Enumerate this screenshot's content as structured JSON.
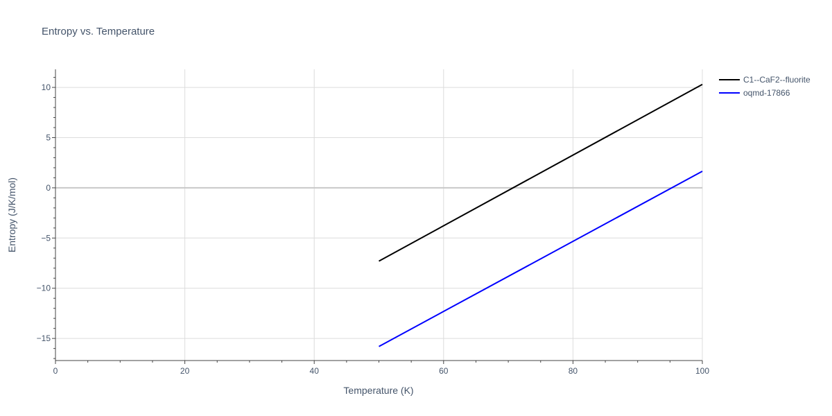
{
  "chart_data": {
    "type": "line",
    "title": "Entropy vs. Temperature",
    "xlabel": "Temperature (K)",
    "ylabel": "Entropy (J/K/mol)",
    "xlim": [
      0,
      100
    ],
    "ylim": [
      -17.2,
      11.8
    ],
    "x_ticks": [
      0,
      20,
      40,
      60,
      80,
      100
    ],
    "y_ticks": [
      10,
      5,
      0,
      -5,
      -10,
      -15
    ],
    "y_tick_labels": [
      "10",
      "5",
      "0",
      "−5",
      "−10",
      "−15"
    ],
    "grid": true,
    "legend_position": "top-right",
    "series": [
      {
        "name": "C1--CaF2--fluorite",
        "color": "#000000",
        "x": [
          50,
          100
        ],
        "y": [
          -7.3,
          10.3
        ]
      },
      {
        "name": "oqmd-17866",
        "color": "#0000ff",
        "x": [
          50,
          100
        ],
        "y": [
          -15.8,
          1.65
        ]
      }
    ]
  }
}
